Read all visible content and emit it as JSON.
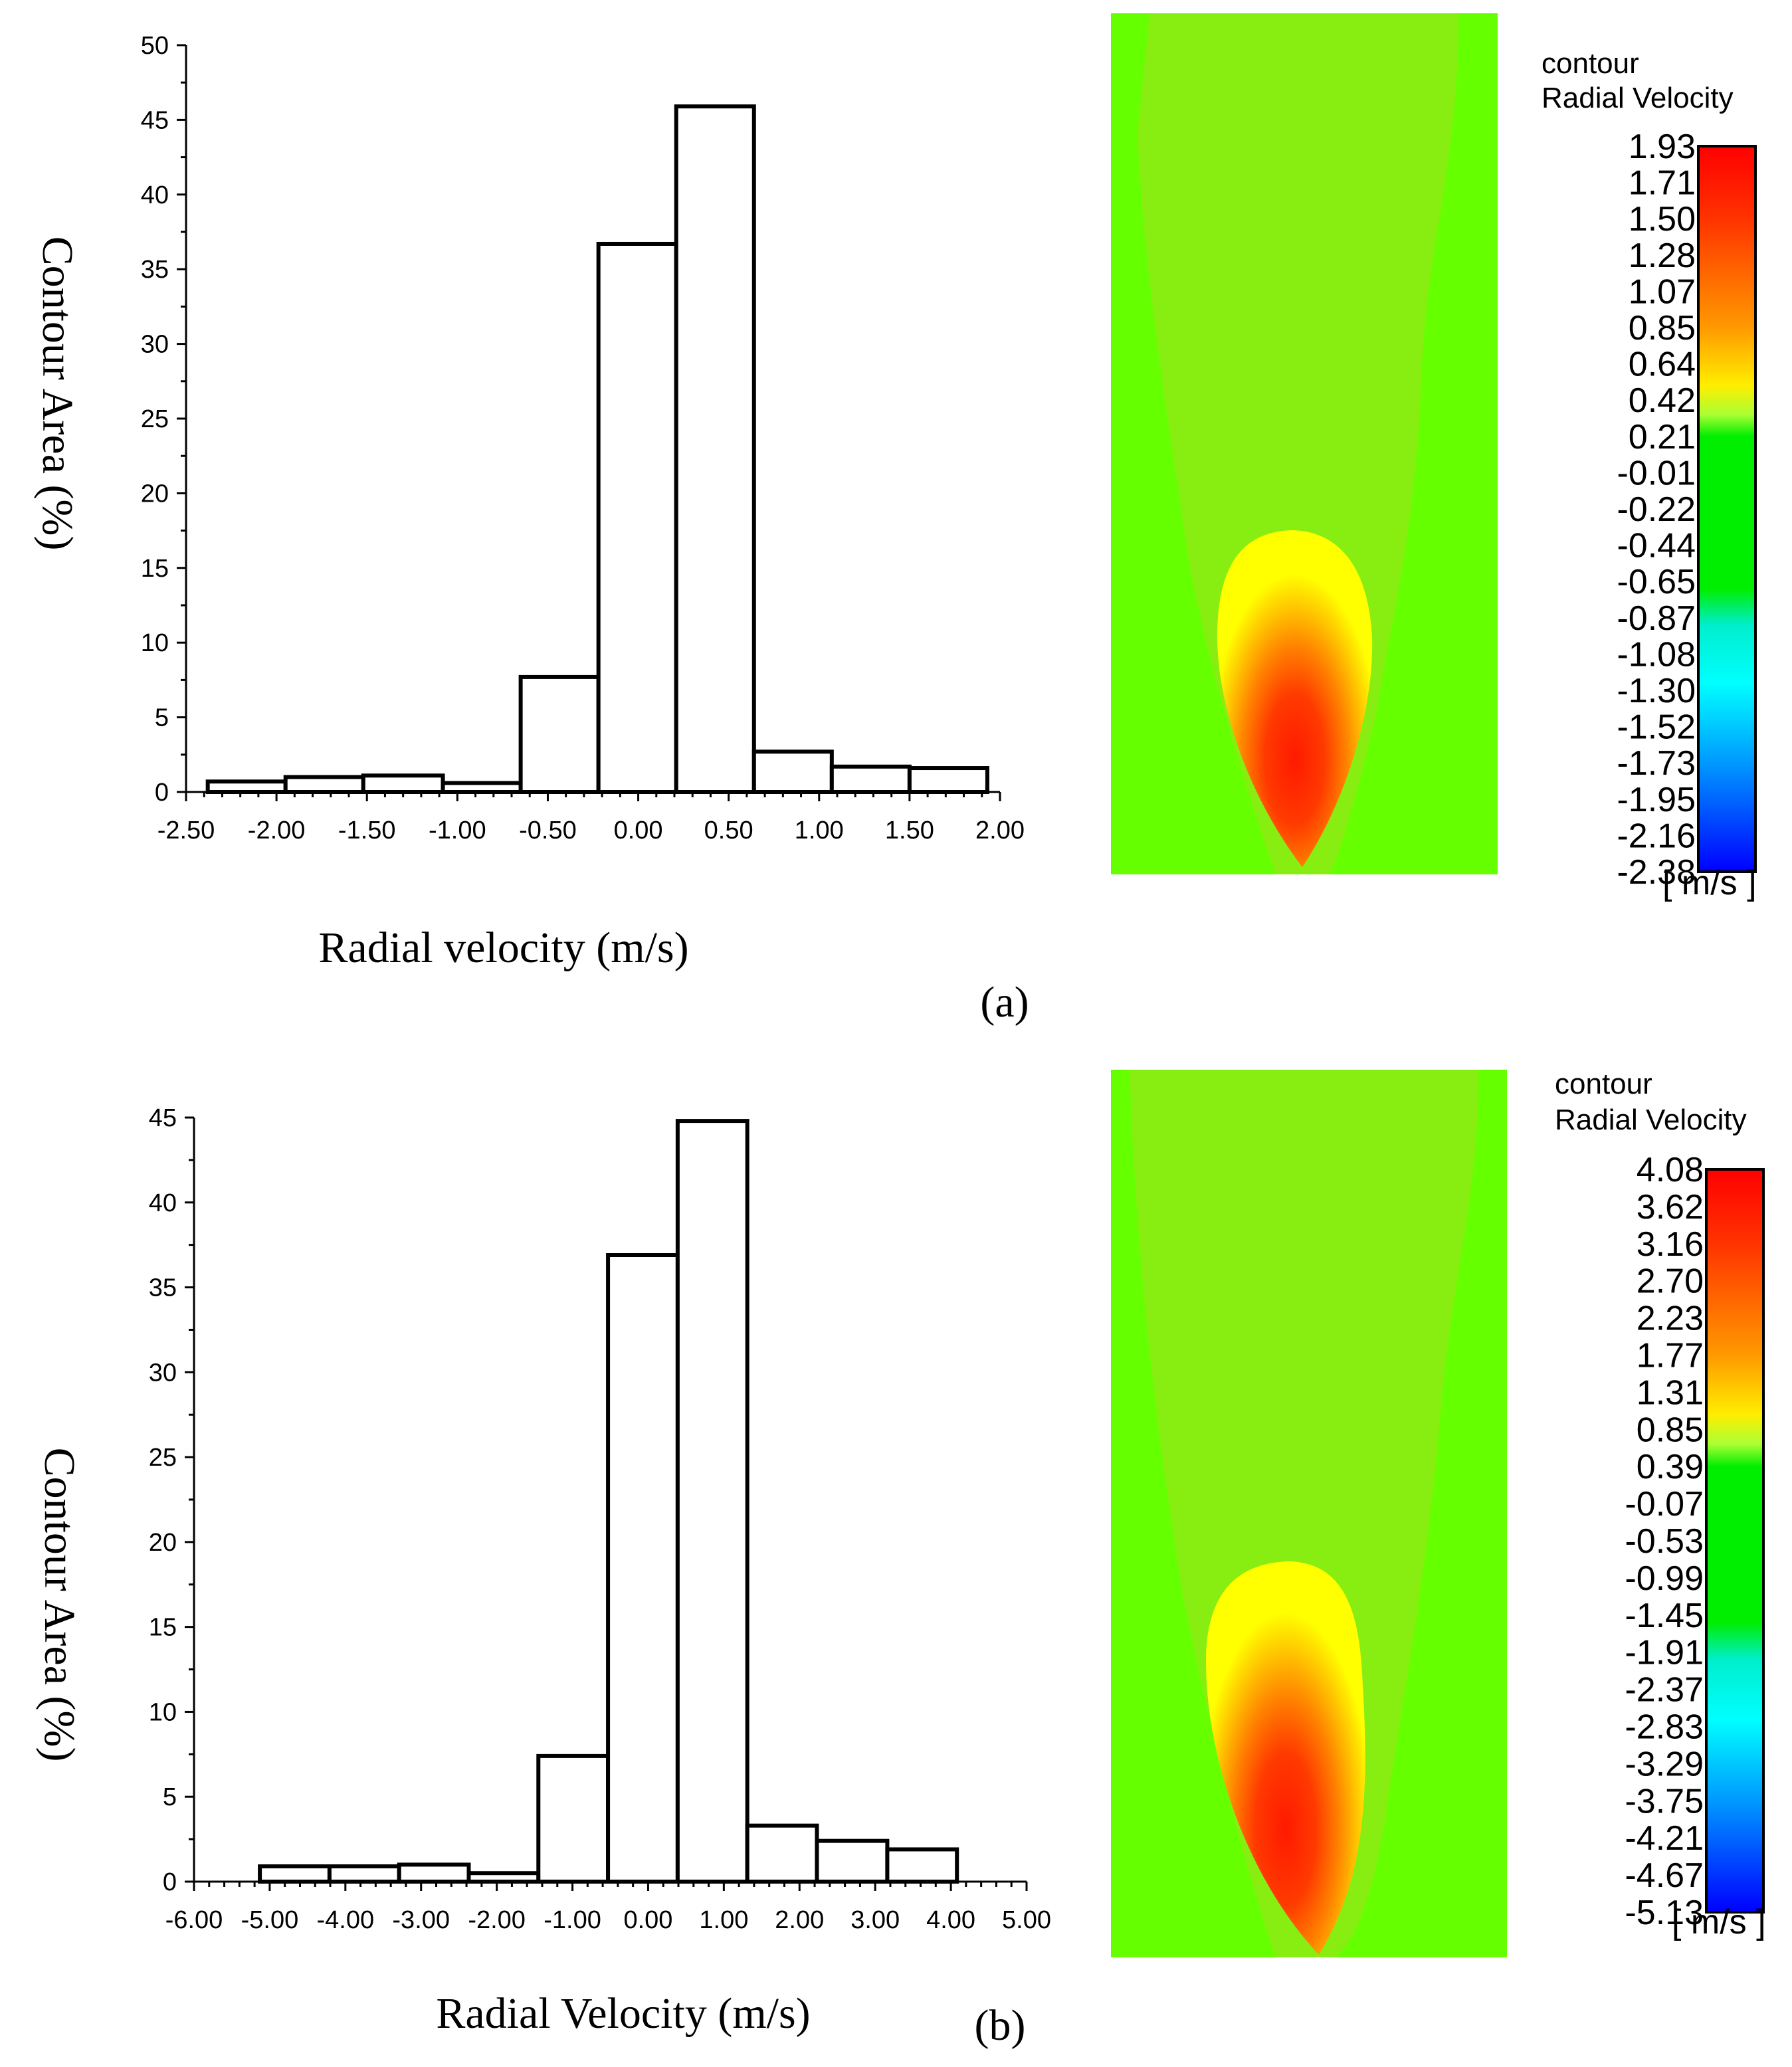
{
  "chart_data": [
    {
      "type": "bar",
      "panel": "(a)",
      "xlabel": "Radial velocity (m/s)",
      "ylabel": "Contour Area (%)",
      "xlim": [
        -2.5,
        2.0
      ],
      "ylim": [
        0,
        50
      ],
      "xticks": [
        "-2.50",
        "-2.00",
        "-1.50",
        "-1.00",
        "-0.50",
        "0.00",
        "0.50",
        "1.00",
        "1.50",
        "2.00"
      ],
      "yticks": [
        "0",
        "5",
        "10",
        "15",
        "20",
        "25",
        "30",
        "35",
        "40",
        "45",
        "50"
      ],
      "bins": [
        {
          "from": -2.38,
          "to": -1.95,
          "value": 0.7
        },
        {
          "from": -1.95,
          "to": -1.52,
          "value": 1.0
        },
        {
          "from": -1.52,
          "to": -1.08,
          "value": 1.1
        },
        {
          "from": -1.08,
          "to": -0.65,
          "value": 0.6
        },
        {
          "from": -0.65,
          "to": -0.22,
          "value": 7.7
        },
        {
          "from": -0.22,
          "to": 0.21,
          "value": 36.7
        },
        {
          "from": 0.21,
          "to": 0.64,
          "value": 45.9
        },
        {
          "from": 0.64,
          "to": 1.07,
          "value": 2.7
        },
        {
          "from": 1.07,
          "to": 1.5,
          "value": 1.7
        },
        {
          "from": 1.5,
          "to": 1.93,
          "value": 1.6
        }
      ],
      "colorbar": {
        "title1": "contour",
        "title2": "Radial Velocity",
        "unit": "[ m/s ]",
        "labels": [
          "1.93",
          "1.71",
          "1.50",
          "1.28",
          "1.07",
          "0.85",
          "0.64",
          "0.42",
          "0.21",
          "-0.01",
          "-0.22",
          "-0.44",
          "-0.65",
          "-0.87",
          "-1.08",
          "-1.30",
          "-1.52",
          "-1.73",
          "-1.95",
          "-2.16",
          "-2.38"
        ]
      }
    },
    {
      "type": "bar",
      "panel": "(b)",
      "xlabel": "Radial Velocity (m/s)",
      "ylabel": "Contour Area (%)",
      "xlim": [
        -6.0,
        5.0
      ],
      "ylim": [
        0,
        45
      ],
      "xticks": [
        "-6.00",
        "-5.00",
        "-4.00",
        "-3.00",
        "-2.00",
        "-1.00",
        "0.00",
        "1.00",
        "2.00",
        "3.00",
        "4.00",
        "5.00"
      ],
      "yticks": [
        "0",
        "5",
        "10",
        "15",
        "20",
        "25",
        "30",
        "35",
        "40",
        "45"
      ],
      "bins": [
        {
          "from": -5.13,
          "to": -4.21,
          "value": 0.9
        },
        {
          "from": -4.21,
          "to": -3.29,
          "value": 0.9
        },
        {
          "from": -3.29,
          "to": -2.37,
          "value": 1.0
        },
        {
          "from": -2.37,
          "to": -1.45,
          "value": 0.5
        },
        {
          "from": -1.45,
          "to": -0.53,
          "value": 7.4
        },
        {
          "from": -0.53,
          "to": 0.39,
          "value": 36.9
        },
        {
          "from": 0.39,
          "to": 1.31,
          "value": 44.8
        },
        {
          "from": 1.31,
          "to": 2.23,
          "value": 3.3
        },
        {
          "from": 2.23,
          "to": 3.16,
          "value": 2.4
        },
        {
          "from": 3.16,
          "to": 4.08,
          "value": 1.9
        }
      ],
      "colorbar": {
        "title1": "contour",
        "title2": "Radial Velocity",
        "unit": "[ m/s ]",
        "labels": [
          "4.08",
          "3.62",
          "3.16",
          "2.70",
          "2.23",
          "1.77",
          "1.31",
          "0.85",
          "0.39",
          "-0.07",
          "-0.53",
          "-0.99",
          "-1.45",
          "-1.91",
          "-2.37",
          "-2.83",
          "-3.29",
          "-3.75",
          "-4.21",
          "-4.67",
          "-5.13"
        ]
      }
    }
  ]
}
